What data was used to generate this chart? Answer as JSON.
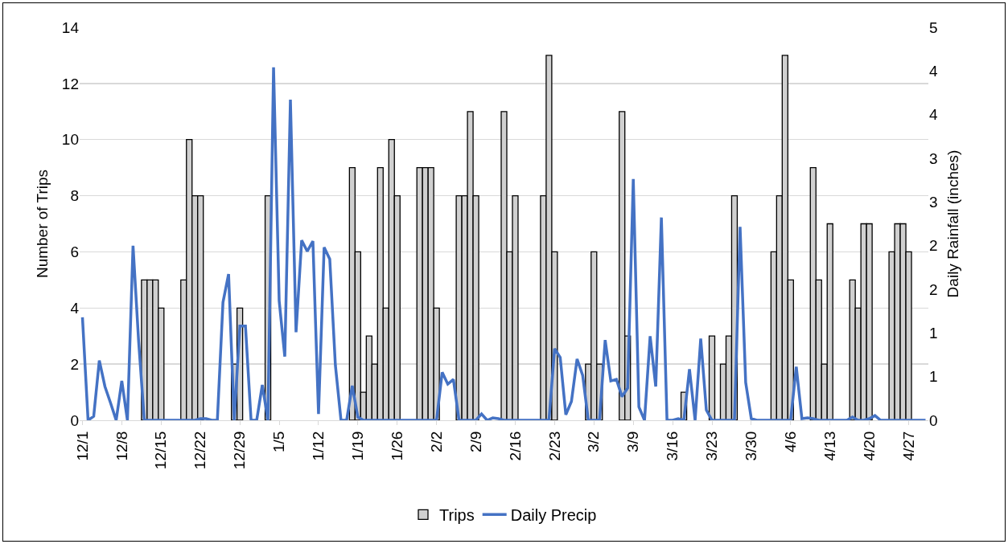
{
  "chart_data": {
    "type": "bar",
    "ylabel": "Number of Trips",
    "y2label": "Daily Rainfall (inches)",
    "categories": [
      "12/1",
      null,
      null,
      null,
      null,
      null,
      null,
      "12/8",
      null,
      null,
      null,
      null,
      null,
      null,
      "12/15",
      null,
      null,
      null,
      null,
      null,
      null,
      "12/22",
      null,
      null,
      null,
      null,
      null,
      null,
      "12/29",
      null,
      null,
      null,
      null,
      null,
      null,
      "1/5",
      null,
      null,
      null,
      null,
      null,
      null,
      "1/12",
      null,
      null,
      null,
      null,
      null,
      null,
      "1/19",
      null,
      null,
      null,
      null,
      null,
      null,
      "1/26",
      null,
      null,
      null,
      null,
      null,
      null,
      "2/2",
      null,
      null,
      null,
      null,
      null,
      null,
      "2/9",
      null,
      null,
      null,
      null,
      null,
      null,
      "2/16",
      null,
      null,
      null,
      null,
      null,
      null,
      "2/23",
      null,
      null,
      null,
      null,
      null,
      null,
      "3/2",
      null,
      null,
      null,
      null,
      null,
      null,
      "3/9",
      null,
      null,
      null,
      null,
      null,
      null,
      "3/16",
      null,
      null,
      null,
      null,
      null,
      null,
      "3/23",
      null,
      null,
      null,
      null,
      null,
      null,
      "3/30",
      null,
      null,
      null,
      null,
      null,
      null,
      "4/6",
      null,
      null,
      null,
      null,
      null,
      null,
      "4/13",
      null,
      null,
      null,
      null,
      null,
      null,
      "4/20",
      null,
      null,
      null,
      null,
      null,
      null,
      "4/27",
      null,
      null,
      null
    ],
    "series": [
      {
        "name": "Trips",
        "color": "#d0d0d0",
        "values": [
          null,
          null,
          null,
          null,
          null,
          null,
          null,
          null,
          null,
          null,
          null,
          5,
          5,
          5,
          4,
          null,
          null,
          null,
          5,
          10,
          8,
          8,
          null,
          null,
          null,
          null,
          null,
          2,
          4,
          null,
          null,
          null,
          null,
          8,
          null,
          null,
          null,
          null,
          null,
          null,
          null,
          null,
          null,
          null,
          null,
          null,
          null,
          null,
          9,
          6,
          1,
          3,
          2,
          9,
          4,
          10,
          8,
          null,
          null,
          null,
          9,
          9,
          9,
          4,
          null,
          null,
          null,
          8,
          8,
          11,
          8,
          null,
          null,
          null,
          null,
          11,
          6,
          8,
          null,
          null,
          null,
          null,
          8,
          13,
          6,
          null,
          null,
          null,
          null,
          null,
          2,
          6,
          2,
          null,
          null,
          null,
          11,
          3,
          null,
          null,
          null,
          null,
          null,
          null,
          null,
          null,
          null,
          1,
          null,
          null,
          null,
          null,
          3,
          null,
          2,
          3,
          8,
          null,
          null,
          null,
          null,
          null,
          null,
          6,
          8,
          13,
          5,
          null,
          null,
          null,
          9,
          5,
          2,
          7,
          null,
          null,
          null,
          5,
          4,
          7,
          7,
          null,
          null,
          null,
          6,
          7,
          7,
          6,
          null,
          null,
          null
        ]
      },
      {
        "name": "Daily Precip",
        "type": "line",
        "axis": "y2",
        "color": "#4472c4",
        "values": [
          1.31,
          0,
          0.05,
          0.76,
          0.43,
          0.22,
          0,
          0.5,
          0,
          2.22,
          1.0,
          0,
          0,
          0,
          0,
          0,
          0,
          0,
          0,
          0,
          0,
          0.02,
          0.02,
          0,
          0,
          1.5,
          1.86,
          0,
          1.2,
          1.2,
          0,
          0,
          0.45,
          0,
          4.49,
          1.52,
          0.81,
          4.08,
          1.12,
          2.29,
          2.15,
          2.28,
          0.08,
          2.2,
          2.05,
          0.7,
          0,
          0,
          0.44,
          0.04,
          0,
          0,
          0,
          0,
          0,
          0,
          0,
          0,
          0,
          0,
          0,
          0,
          0,
          0,
          0.61,
          0.46,
          0.52,
          0,
          0,
          0,
          0,
          0.08,
          0,
          0.03,
          0.02,
          0,
          0,
          0,
          0,
          0,
          0,
          0,
          0,
          0,
          0.91,
          0.8,
          0.07,
          0.24,
          0.78,
          0.57,
          0,
          0,
          0,
          1.02,
          0.5,
          0.52,
          0.3,
          0.41,
          3.07,
          0.17,
          0,
          1.07,
          0.43,
          2.58,
          0,
          0,
          0.02,
          0,
          0.65,
          0,
          1.04,
          0.13,
          0,
          0,
          0,
          0,
          0,
          2.46,
          0.48,
          0.02,
          0,
          0,
          0,
          0,
          0,
          0,
          0,
          0.68,
          0.02,
          0.03,
          0.02,
          0,
          0,
          0,
          0,
          0,
          0,
          0.04,
          0,
          0,
          0.02,
          0.06,
          0,
          0,
          0,
          0,
          0,
          0,
          0,
          0,
          0
        ]
      }
    ],
    "ylim": [
      0,
      14
    ],
    "yticks": [
      0,
      2,
      4,
      6,
      8,
      10,
      12,
      14
    ],
    "y2lim": [
      0,
      5
    ],
    "y2ticks": [
      0,
      {
        "value": 0.556,
        "label": "1"
      },
      {
        "value": 1.111,
        "label": "1"
      },
      {
        "value": 1.667,
        "label": "2"
      },
      {
        "value": 2.222,
        "label": "2"
      },
      {
        "value": 2.778,
        "label": "3"
      },
      {
        "value": 3.333,
        "label": "3"
      },
      {
        "value": 3.889,
        "label": "4"
      },
      {
        "value": 4.444,
        "label": "4"
      },
      5
    ],
    "grid": "y",
    "legend": "bottom",
    "line_style": "solid",
    "marker": "none"
  }
}
